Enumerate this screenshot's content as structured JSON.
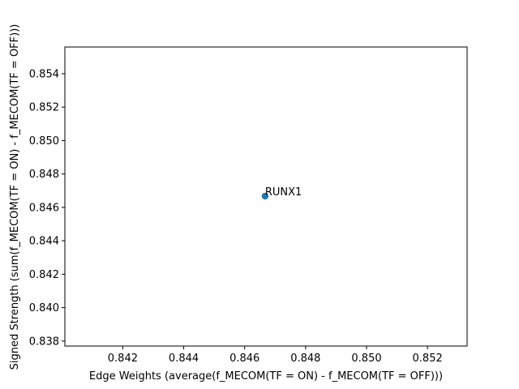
{
  "chart_data": {
    "type": "scatter",
    "title": "",
    "xlabel": "Edge Weights (average(f_MECOM(TF = ON) - f_MECOM(TF = OFF)))",
    "ylabel": "Signed Strength (sum(f_MECOM(TF = ON) - f_MECOM(TF = OFF)))",
    "xlim": [
      0.8401,
      0.8533
    ],
    "ylim": [
      0.8377,
      0.8556
    ],
    "xticks": [
      "0.842",
      "0.844",
      "0.846",
      "0.848",
      "0.850",
      "0.852"
    ],
    "xtick_values": [
      0.842,
      0.844,
      0.846,
      0.848,
      0.85,
      0.852
    ],
    "yticks": [
      "0.838",
      "0.840",
      "0.842",
      "0.844",
      "0.846",
      "0.848",
      "0.850",
      "0.852",
      "0.854"
    ],
    "ytick_values": [
      0.838,
      0.84,
      0.842,
      0.844,
      0.846,
      0.848,
      0.85,
      0.852,
      0.854
    ],
    "grid": false,
    "points": [
      {
        "label": "RUNX1",
        "x": 0.84667,
        "y": 0.84667
      }
    ],
    "colors": {
      "point": "#1f77b4",
      "axes": "#000000"
    }
  }
}
